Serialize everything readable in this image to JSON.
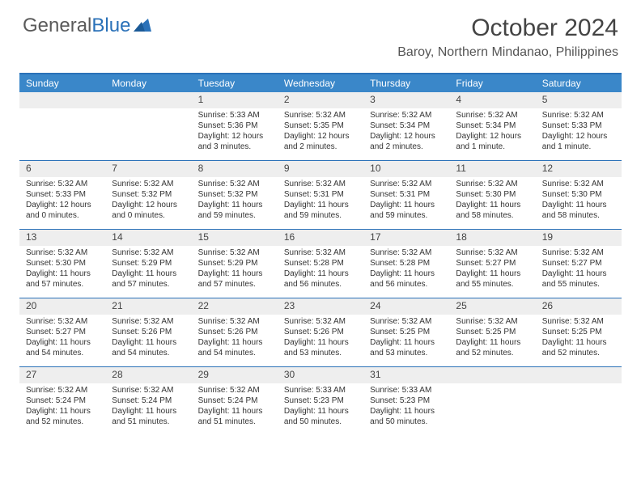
{
  "brand": {
    "part1": "General",
    "part2": "Blue"
  },
  "header": {
    "title": "October 2024",
    "location": "Baroy, Northern Mindanao, Philippines"
  },
  "colors": {
    "header_bar": "#3a87c9",
    "accent_line": "#2a71b8",
    "daynum_bg": "#eeeeee",
    "text": "#333333",
    "background": "#ffffff"
  },
  "weekdays": [
    "Sunday",
    "Monday",
    "Tuesday",
    "Wednesday",
    "Thursday",
    "Friday",
    "Saturday"
  ],
  "weeks": [
    [
      null,
      null,
      {
        "n": "1",
        "sr": "Sunrise: 5:33 AM",
        "ss": "Sunset: 5:36 PM",
        "d1": "Daylight: 12 hours",
        "d2": "and 3 minutes."
      },
      {
        "n": "2",
        "sr": "Sunrise: 5:32 AM",
        "ss": "Sunset: 5:35 PM",
        "d1": "Daylight: 12 hours",
        "d2": "and 2 minutes."
      },
      {
        "n": "3",
        "sr": "Sunrise: 5:32 AM",
        "ss": "Sunset: 5:34 PM",
        "d1": "Daylight: 12 hours",
        "d2": "and 2 minutes."
      },
      {
        "n": "4",
        "sr": "Sunrise: 5:32 AM",
        "ss": "Sunset: 5:34 PM",
        "d1": "Daylight: 12 hours",
        "d2": "and 1 minute."
      },
      {
        "n": "5",
        "sr": "Sunrise: 5:32 AM",
        "ss": "Sunset: 5:33 PM",
        "d1": "Daylight: 12 hours",
        "d2": "and 1 minute."
      }
    ],
    [
      {
        "n": "6",
        "sr": "Sunrise: 5:32 AM",
        "ss": "Sunset: 5:33 PM",
        "d1": "Daylight: 12 hours",
        "d2": "and 0 minutes."
      },
      {
        "n": "7",
        "sr": "Sunrise: 5:32 AM",
        "ss": "Sunset: 5:32 PM",
        "d1": "Daylight: 12 hours",
        "d2": "and 0 minutes."
      },
      {
        "n": "8",
        "sr": "Sunrise: 5:32 AM",
        "ss": "Sunset: 5:32 PM",
        "d1": "Daylight: 11 hours",
        "d2": "and 59 minutes."
      },
      {
        "n": "9",
        "sr": "Sunrise: 5:32 AM",
        "ss": "Sunset: 5:31 PM",
        "d1": "Daylight: 11 hours",
        "d2": "and 59 minutes."
      },
      {
        "n": "10",
        "sr": "Sunrise: 5:32 AM",
        "ss": "Sunset: 5:31 PM",
        "d1": "Daylight: 11 hours",
        "d2": "and 59 minutes."
      },
      {
        "n": "11",
        "sr": "Sunrise: 5:32 AM",
        "ss": "Sunset: 5:30 PM",
        "d1": "Daylight: 11 hours",
        "d2": "and 58 minutes."
      },
      {
        "n": "12",
        "sr": "Sunrise: 5:32 AM",
        "ss": "Sunset: 5:30 PM",
        "d1": "Daylight: 11 hours",
        "d2": "and 58 minutes."
      }
    ],
    [
      {
        "n": "13",
        "sr": "Sunrise: 5:32 AM",
        "ss": "Sunset: 5:30 PM",
        "d1": "Daylight: 11 hours",
        "d2": "and 57 minutes."
      },
      {
        "n": "14",
        "sr": "Sunrise: 5:32 AM",
        "ss": "Sunset: 5:29 PM",
        "d1": "Daylight: 11 hours",
        "d2": "and 57 minutes."
      },
      {
        "n": "15",
        "sr": "Sunrise: 5:32 AM",
        "ss": "Sunset: 5:29 PM",
        "d1": "Daylight: 11 hours",
        "d2": "and 57 minutes."
      },
      {
        "n": "16",
        "sr": "Sunrise: 5:32 AM",
        "ss": "Sunset: 5:28 PM",
        "d1": "Daylight: 11 hours",
        "d2": "and 56 minutes."
      },
      {
        "n": "17",
        "sr": "Sunrise: 5:32 AM",
        "ss": "Sunset: 5:28 PM",
        "d1": "Daylight: 11 hours",
        "d2": "and 56 minutes."
      },
      {
        "n": "18",
        "sr": "Sunrise: 5:32 AM",
        "ss": "Sunset: 5:27 PM",
        "d1": "Daylight: 11 hours",
        "d2": "and 55 minutes."
      },
      {
        "n": "19",
        "sr": "Sunrise: 5:32 AM",
        "ss": "Sunset: 5:27 PM",
        "d1": "Daylight: 11 hours",
        "d2": "and 55 minutes."
      }
    ],
    [
      {
        "n": "20",
        "sr": "Sunrise: 5:32 AM",
        "ss": "Sunset: 5:27 PM",
        "d1": "Daylight: 11 hours",
        "d2": "and 54 minutes."
      },
      {
        "n": "21",
        "sr": "Sunrise: 5:32 AM",
        "ss": "Sunset: 5:26 PM",
        "d1": "Daylight: 11 hours",
        "d2": "and 54 minutes."
      },
      {
        "n": "22",
        "sr": "Sunrise: 5:32 AM",
        "ss": "Sunset: 5:26 PM",
        "d1": "Daylight: 11 hours",
        "d2": "and 54 minutes."
      },
      {
        "n": "23",
        "sr": "Sunrise: 5:32 AM",
        "ss": "Sunset: 5:26 PM",
        "d1": "Daylight: 11 hours",
        "d2": "and 53 minutes."
      },
      {
        "n": "24",
        "sr": "Sunrise: 5:32 AM",
        "ss": "Sunset: 5:25 PM",
        "d1": "Daylight: 11 hours",
        "d2": "and 53 minutes."
      },
      {
        "n": "25",
        "sr": "Sunrise: 5:32 AM",
        "ss": "Sunset: 5:25 PM",
        "d1": "Daylight: 11 hours",
        "d2": "and 52 minutes."
      },
      {
        "n": "26",
        "sr": "Sunrise: 5:32 AM",
        "ss": "Sunset: 5:25 PM",
        "d1": "Daylight: 11 hours",
        "d2": "and 52 minutes."
      }
    ],
    [
      {
        "n": "27",
        "sr": "Sunrise: 5:32 AM",
        "ss": "Sunset: 5:24 PM",
        "d1": "Daylight: 11 hours",
        "d2": "and 52 minutes."
      },
      {
        "n": "28",
        "sr": "Sunrise: 5:32 AM",
        "ss": "Sunset: 5:24 PM",
        "d1": "Daylight: 11 hours",
        "d2": "and 51 minutes."
      },
      {
        "n": "29",
        "sr": "Sunrise: 5:32 AM",
        "ss": "Sunset: 5:24 PM",
        "d1": "Daylight: 11 hours",
        "d2": "and 51 minutes."
      },
      {
        "n": "30",
        "sr": "Sunrise: 5:33 AM",
        "ss": "Sunset: 5:23 PM",
        "d1": "Daylight: 11 hours",
        "d2": "and 50 minutes."
      },
      {
        "n": "31",
        "sr": "Sunrise: 5:33 AM",
        "ss": "Sunset: 5:23 PM",
        "d1": "Daylight: 11 hours",
        "d2": "and 50 minutes."
      },
      null,
      null
    ]
  ]
}
